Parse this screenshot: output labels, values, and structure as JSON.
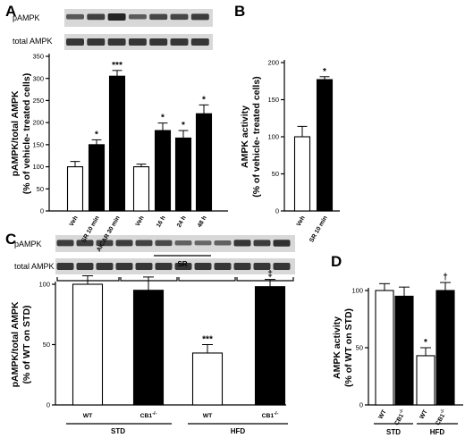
{
  "panel_letters": [
    "A",
    "B",
    "C",
    "D"
  ],
  "blots": {
    "A": {
      "rows": [
        "pAMPK",
        "total AMPK"
      ]
    },
    "C": {
      "rows": [
        "pAMPK",
        "total AMPK"
      ]
    }
  },
  "chart_data": [
    {
      "panel": "A",
      "type": "bar",
      "ylabel_line1": "pAMPK/total AMPK",
      "ylabel_line2": "(% of vehicle- treated cells)",
      "ylim": [
        0,
        350
      ],
      "yticks": [
        0,
        50,
        100,
        150,
        200,
        250,
        300,
        350
      ],
      "categories": [
        "Veh",
        "SR 10 min",
        "AICAR 30 min",
        "Veh",
        "16 h",
        "24 h",
        "48 h"
      ],
      "values": [
        100,
        150,
        305,
        100,
        182,
        165,
        220
      ],
      "errors": [
        12,
        11,
        13,
        6,
        17,
        17,
        20
      ],
      "fills": [
        "open",
        "filled",
        "filled",
        "open",
        "filled",
        "filled",
        "filled"
      ],
      "significance": [
        "",
        "*",
        "***",
        "",
        "*",
        "*",
        "*"
      ],
      "group_label": "SR"
    },
    {
      "panel": "B",
      "type": "bar",
      "ylabel_line1": "AMPK activity",
      "ylabel_line2": "(% of vehicle- treated cells)",
      "ylim": [
        0,
        200
      ],
      "yticks": [
        0,
        50,
        100,
        150,
        200
      ],
      "categories": [
        "Veh",
        "SR 10 min"
      ],
      "values": [
        100,
        177
      ],
      "errors": [
        14,
        4
      ],
      "fills": [
        "open",
        "filled"
      ],
      "significance": [
        "",
        "*"
      ]
    },
    {
      "panel": "C",
      "type": "bar",
      "ylabel_line1": "pAMPK/total AMPK",
      "ylabel_line2": "(% of WT on STD)",
      "ylim": [
        0,
        100
      ],
      "yticks": [
        0,
        50,
        100
      ],
      "categories": [
        "WT",
        "CB1-/-",
        "WT",
        "CB1-/-"
      ],
      "values": [
        100,
        95,
        43,
        98
      ],
      "errors": [
        7,
        11,
        7,
        6
      ],
      "fills": [
        "open",
        "filled",
        "open",
        "filled"
      ],
      "significance": [
        "",
        "",
        "***",
        "‡"
      ],
      "groups": [
        "STD",
        "HFD"
      ]
    },
    {
      "panel": "D",
      "type": "bar",
      "ylabel_line1": "AMPK activity",
      "ylabel_line2": "(% of WT on STD)",
      "ylim": [
        0,
        100
      ],
      "yticks": [
        0,
        50,
        100
      ],
      "categories": [
        "WT",
        "CB1-/-",
        "WT",
        "CB1-/-"
      ],
      "values": [
        100,
        95,
        43,
        100
      ],
      "errors": [
        6,
        8,
        7,
        7
      ],
      "fills": [
        "open",
        "filled",
        "open",
        "filled"
      ],
      "significance": [
        "",
        "",
        "*",
        "†"
      ],
      "groups": [
        "STD",
        "HFD"
      ]
    }
  ]
}
